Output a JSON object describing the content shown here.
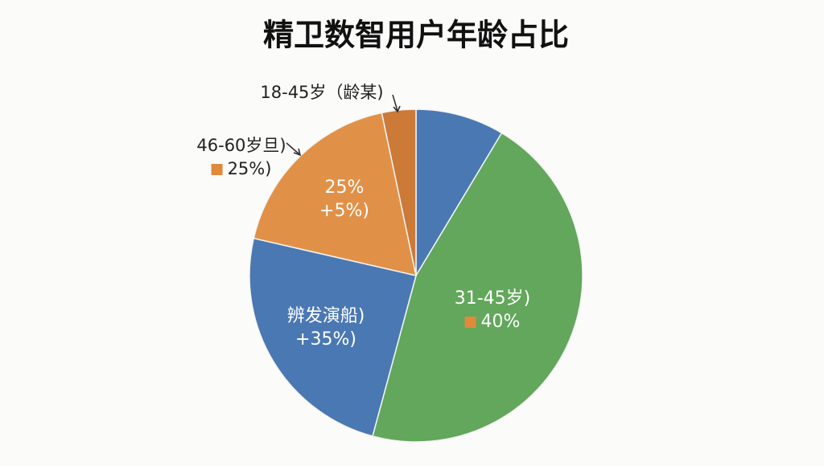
{
  "chart_data": {
    "type": "pie",
    "title": "精卫数智用户年龄占比",
    "values": [
      8.6,
      45.6,
      24.4,
      18.1,
      3.3
    ],
    "colors": [
      "#4a78b2",
      "#62a75b",
      "#4a78b2",
      "#e19147",
      "#cb7a38"
    ],
    "start_angle": 0,
    "direction": "clockwise",
    "annotations": [
      {
        "lines": [
          "18-45岁（龄某)"
        ]
      },
      {
        "lines": [
          "46-60岁旦)",
          "25%)"
        ]
      },
      {
        "lines": [
          "25%",
          "+5%)"
        ]
      },
      {
        "lines": [
          "辨发演船)",
          "+35%)"
        ]
      },
      {
        "lines": [
          "31-45岁)",
          "40%"
        ]
      }
    ]
  }
}
